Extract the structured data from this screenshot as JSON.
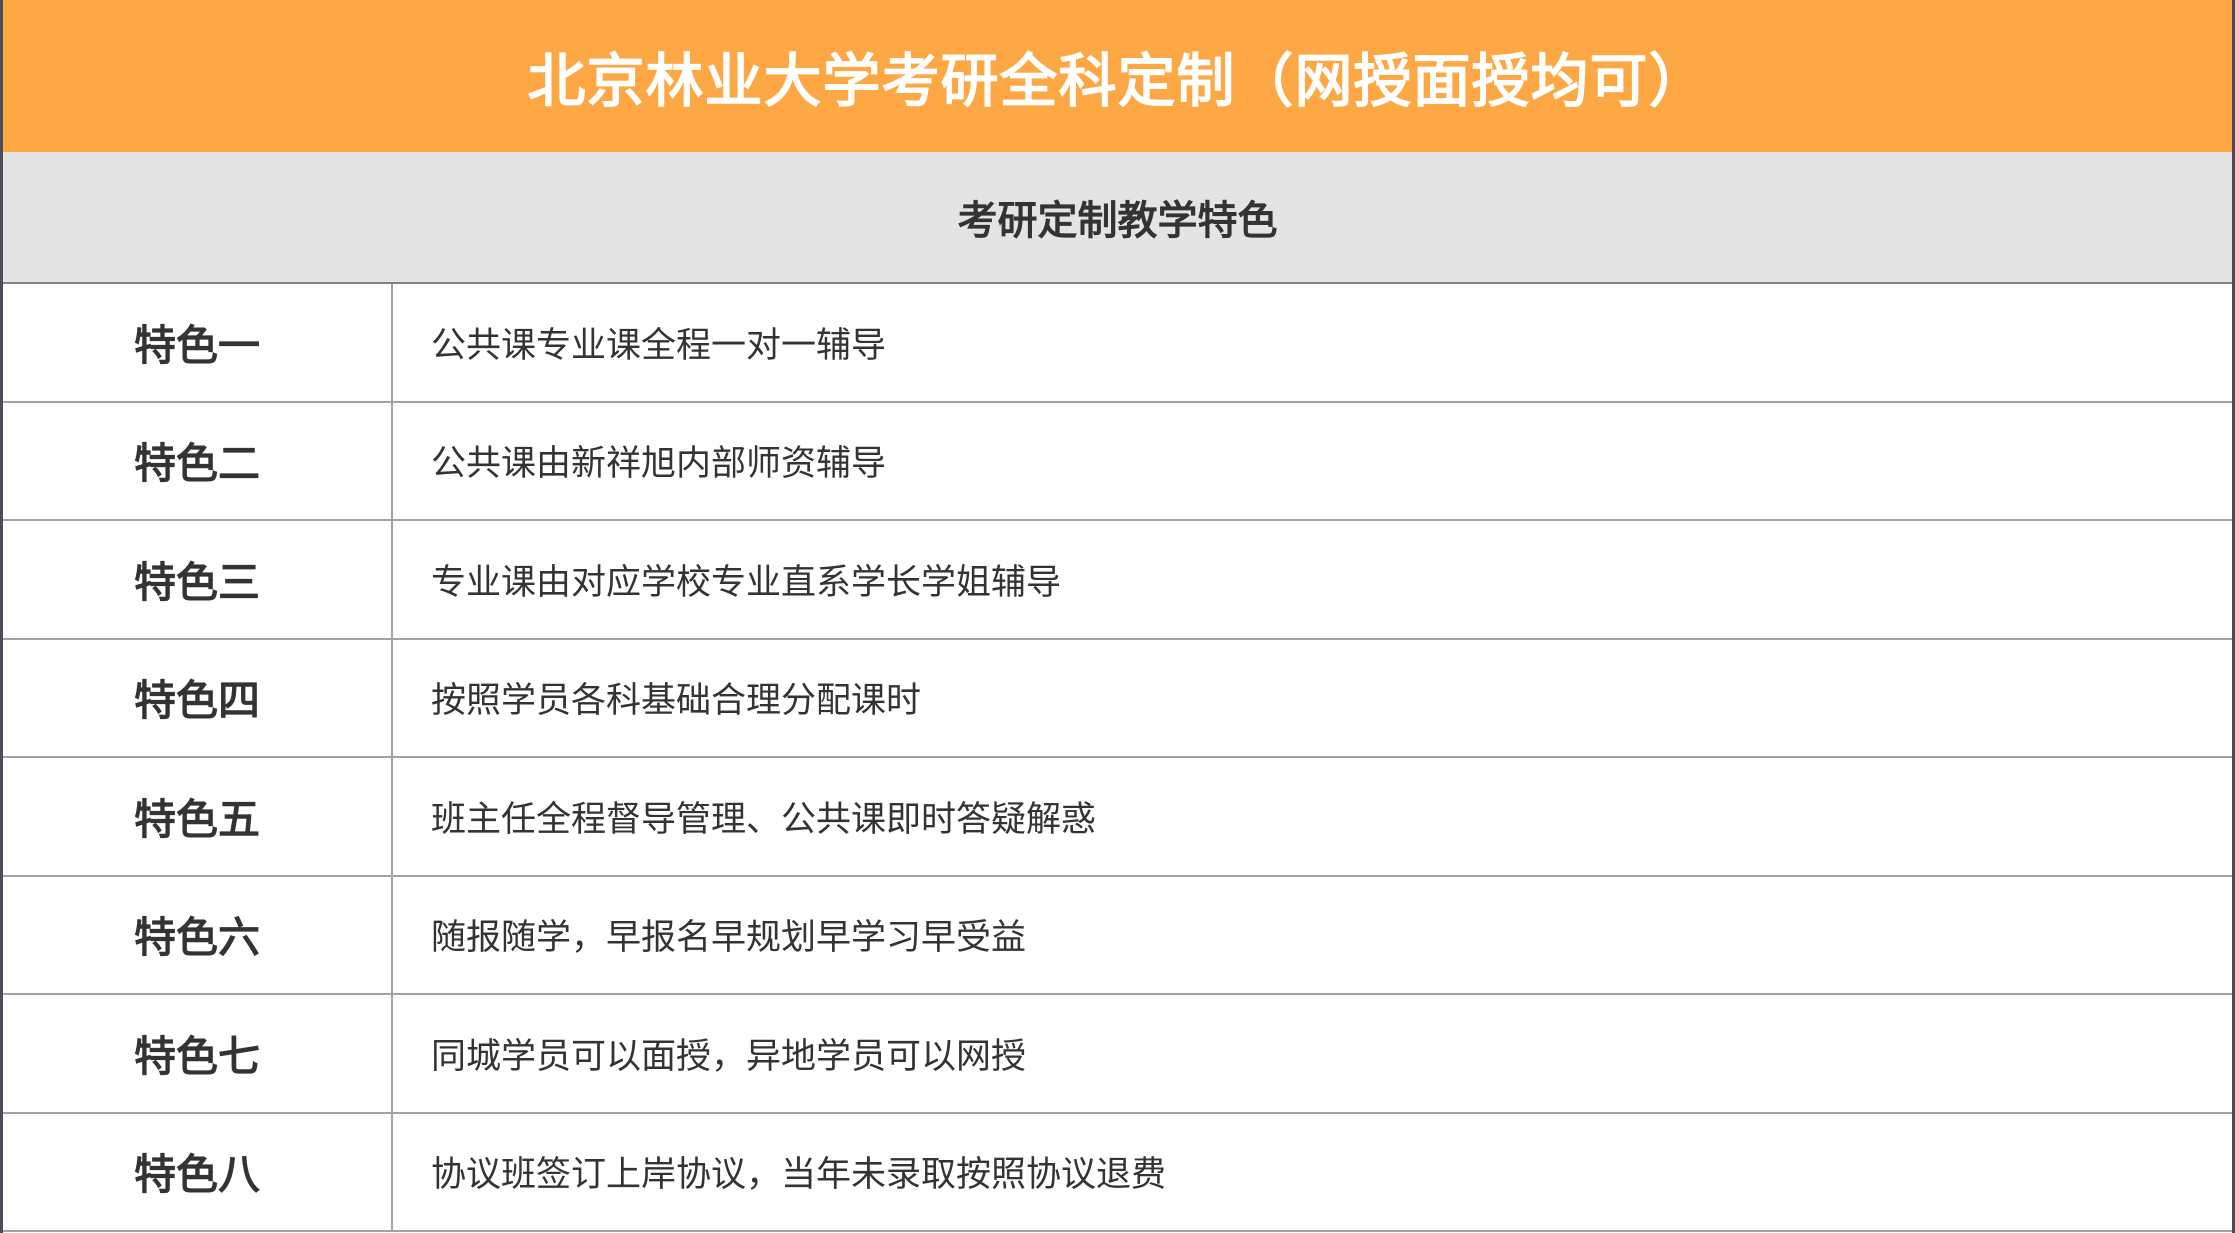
{
  "header": {
    "title": "北京林业大学考研全科定制（网授面授均可）"
  },
  "section": {
    "title": "考研定制教学特色"
  },
  "features": [
    {
      "label": "特色一",
      "text": "公共课专业课全程一对一辅导"
    },
    {
      "label": "特色二",
      "text": "公共课由新祥旭内部师资辅导"
    },
    {
      "label": "特色三",
      "text": "专业课由对应学校专业直系学长学姐辅导"
    },
    {
      "label": "特色四",
      "text": "按照学员各科基础合理分配课时"
    },
    {
      "label": "特色五",
      "text": "班主任全程督导管理、公共课即时答疑解惑"
    },
    {
      "label": "特色六",
      "text": "随报随学，早报名早规划早学习早受益"
    },
    {
      "label": "特色七",
      "text": "同城学员可以面授，异地学员可以网授"
    },
    {
      "label": "特色八",
      "text": "协议班签订上岸协议，当年未录取按照协议退费"
    }
  ],
  "colors": {
    "header_bg": "#fda845",
    "section_bg": "#e4e4e4"
  }
}
